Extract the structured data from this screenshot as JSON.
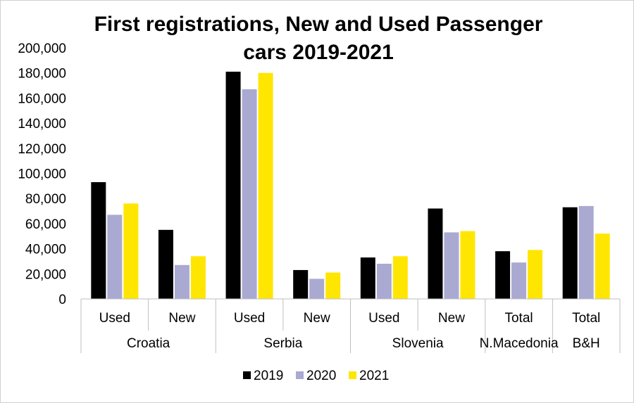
{
  "chart_data": {
    "type": "bar",
    "title_lines": [
      "First registrations, New and Used Passenger",
      "cars 2019-2021"
    ],
    "xlabel": "",
    "ylabel": "",
    "ylim": [
      0,
      200000
    ],
    "yticks": [
      0,
      20000,
      40000,
      60000,
      80000,
      100000,
      120000,
      140000,
      160000,
      180000,
      200000
    ],
    "ytick_labels": [
      "0",
      "20,000",
      "40,000",
      "60,000",
      "80,000",
      "100,000",
      "120,000",
      "140,000",
      "160,000",
      "180,000",
      "200,000"
    ],
    "categories": [
      "Used",
      "New",
      "Used",
      "New",
      "Used",
      "New",
      "Total",
      "Total"
    ],
    "groups": [
      {
        "label": "Croatia",
        "span": 2
      },
      {
        "label": "Serbia",
        "span": 2
      },
      {
        "label": "Slovenia",
        "span": 2
      },
      {
        "label": "N.Macedonia",
        "span": 1
      },
      {
        "label": "B&H",
        "span": 1
      }
    ],
    "series": [
      {
        "name": "2019",
        "color": "#000000",
        "values": [
          93000,
          55000,
          181000,
          23000,
          33000,
          72000,
          38000,
          73000
        ]
      },
      {
        "name": "2020",
        "color": "#a9a9d2",
        "values": [
          67000,
          27000,
          167000,
          16000,
          28000,
          53000,
          29000,
          74000
        ]
      },
      {
        "name": "2021",
        "color": "#ffe600",
        "values": [
          76000,
          34000,
          180000,
          21000,
          34000,
          54000,
          39000,
          52000
        ]
      }
    ],
    "grid": false,
    "legend_position": "bottom"
  }
}
